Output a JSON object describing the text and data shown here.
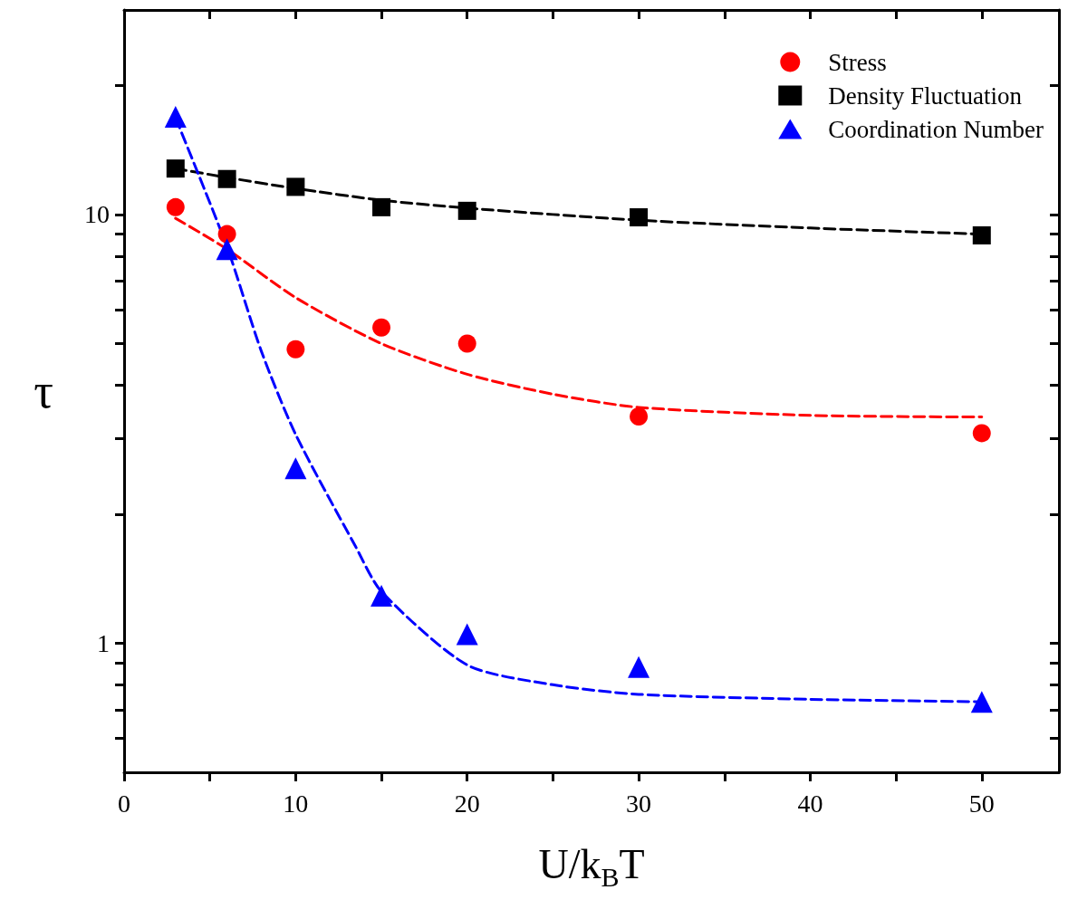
{
  "chart_data": {
    "type": "scatter",
    "xlabel": "U/k$_{B}$T",
    "ylabel": "τ",
    "log": "y",
    "xlim": [
      0,
      54.5
    ],
    "ylim": [
      0.5,
      30
    ],
    "xticks": [
      0,
      {
        "value": 5,
        "label": null
      },
      10,
      {
        "value": 15,
        "label": null
      },
      20,
      {
        "value": 25,
        "label": null
      },
      30,
      {
        "value": 35,
        "label": null
      },
      40,
      {
        "value": 45,
        "label": null
      },
      50
    ],
    "yticks": [
      {
        "value": 0.6,
        "label": null
      },
      {
        "value": 0.7,
        "label": null
      },
      {
        "value": 0.8,
        "label": null
      },
      {
        "value": 0.9,
        "label": null
      },
      1,
      {
        "value": 2,
        "label": null
      },
      {
        "value": 3,
        "label": null
      },
      {
        "value": 4,
        "label": null
      },
      {
        "value": 5,
        "label": null
      },
      {
        "value": 6,
        "label": null
      },
      {
        "value": 7,
        "label": null
      },
      {
        "value": 8,
        "label": null
      },
      {
        "value": 9,
        "label": null
      },
      10,
      {
        "value": 20,
        "label": null
      }
    ],
    "legend": "top right",
    "grid": false,
    "series": [
      {
        "name": "Stress",
        "type": "scatter",
        "marker": "circle",
        "color": "#ff0000",
        "x": [
          3,
          6,
          10,
          15,
          20,
          30,
          50
        ],
        "values": [
          10.4,
          9.0,
          4.85,
          5.45,
          5.0,
          3.38,
          3.09
        ]
      },
      {
        "name": "Density Fluctuation",
        "type": "scatter",
        "marker": "square",
        "color": "#000000",
        "x": [
          3,
          6,
          10,
          15,
          20,
          30,
          50
        ],
        "values": [
          12.8,
          12.1,
          11.6,
          10.4,
          10.2,
          9.85,
          8.94
        ]
      },
      {
        "name": "Coordination Number",
        "type": "scatter",
        "marker": "triangle",
        "color": "#0000ff",
        "x": [
          3,
          6,
          10,
          15,
          20,
          30,
          50
        ],
        "values": [
          16.9,
          8.3,
          2.56,
          1.29,
          1.05,
          0.88,
          0.73
        ]
      },
      {
        "type": "line",
        "marker": "none",
        "line_style": "dashed",
        "color": "#ff0000",
        "x": [
          3,
          6,
          10,
          15,
          20,
          25,
          30,
          40,
          50
        ],
        "values": [
          9.8,
          8.3,
          6.4,
          5.0,
          4.24,
          3.81,
          3.55,
          3.4,
          3.37
        ]
      },
      {
        "type": "line",
        "marker": "none",
        "line_style": "dashed",
        "color": "#000000",
        "x": [
          3,
          6,
          10,
          15,
          20,
          30,
          40,
          50
        ],
        "values": [
          12.8,
          12.2,
          11.5,
          10.8,
          10.35,
          9.7,
          9.3,
          9.0
        ]
      },
      {
        "type": "line",
        "marker": "none",
        "line_style": "dashed",
        "color": "#0000ff",
        "x": [
          3,
          6,
          8,
          10,
          13.5,
          15,
          20,
          25,
          30,
          40,
          50
        ],
        "values": [
          16.8,
          8.4,
          4.8,
          3.07,
          1.68,
          1.32,
          0.89,
          0.8,
          0.76,
          0.74,
          0.73
        ]
      }
    ]
  }
}
